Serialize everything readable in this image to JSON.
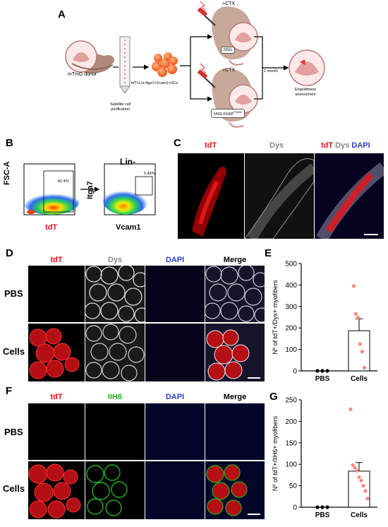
{
  "panels": {
    "A": "A",
    "B": "B",
    "C": "C",
    "D": "D",
    "E": "E",
    "F": "F",
    "G": "G"
  },
  "schematic": {
    "donor": "mTmG donor",
    "purification": "Satellite cell\npurification",
    "cells": "tdT+Lin-Itga7+Vcam1+SCs",
    "ctx_top": "+CTX",
    "ctx_bottom": "+CTX",
    "mouse_top": "NSG",
    "mouse_bottom": "NSG-FKRP",
    "mouse_bottom_sup": "P448L",
    "time": "1 month",
    "assessment": "Engraftment\nassessment"
  },
  "flow": {
    "plot1": {
      "ylabel": "FSC-A",
      "xlabel": "tdT",
      "gate_pct": "82.4%"
    },
    "plot2": {
      "title": "Lin-",
      "ylabel": "Itga7",
      "xlabel": "Vcam1",
      "gate_pct": "5.46%"
    }
  },
  "panel_c": {
    "labels": [
      "tdT",
      "Dys"
    ],
    "merge": {
      "tdT": "tdT",
      "Dys": "Dys",
      "DAPI": "DAPI"
    }
  },
  "panel_d": {
    "cols": [
      "tdT",
      "Dys",
      "DAPI",
      "Merge"
    ],
    "rows": [
      "PBS",
      "Cells"
    ]
  },
  "panel_f": {
    "cols": [
      "tdT",
      "IIH6",
      "DAPI",
      "Merge"
    ],
    "rows": [
      "PBS",
      "Cells"
    ]
  },
  "colors": {
    "tdT": "#e8141b",
    "dys": "#888888",
    "dapi": "#2a3fd6",
    "iih6": "#1fb11f",
    "dots": "#f48b85"
  },
  "chart_data": [
    {
      "type": "bar",
      "panel": "E",
      "categories": [
        "PBS",
        "Cells"
      ],
      "ylabel": "Nº of tdT+/Dys+ myofibers",
      "ylim": [
        0,
        500
      ],
      "yticks": [
        0,
        100,
        200,
        300,
        400,
        500
      ],
      "bar_values": [
        0,
        187
      ],
      "error": [
        0,
        55
      ],
      "points": {
        "PBS": [
          0,
          0,
          0
        ],
        "Cells": [
          395,
          265,
          248,
          125,
          90,
          15
        ]
      }
    },
    {
      "type": "bar",
      "panel": "G",
      "categories": [
        "PBS",
        "Cells"
      ],
      "ylabel": "Nº of tdT+/IIH6+ myofibers",
      "ylim": [
        0,
        250
      ],
      "yticks": [
        0,
        50,
        100,
        150,
        200,
        250
      ],
      "bar_values": [
        0,
        84
      ],
      "error": [
        0,
        20
      ],
      "points": {
        "PBS": [
          0,
          0,
          0
        ],
        "Cells": [
          228,
          98,
          92,
          85,
          70,
          62,
          50,
          38,
          20
        ]
      }
    }
  ]
}
